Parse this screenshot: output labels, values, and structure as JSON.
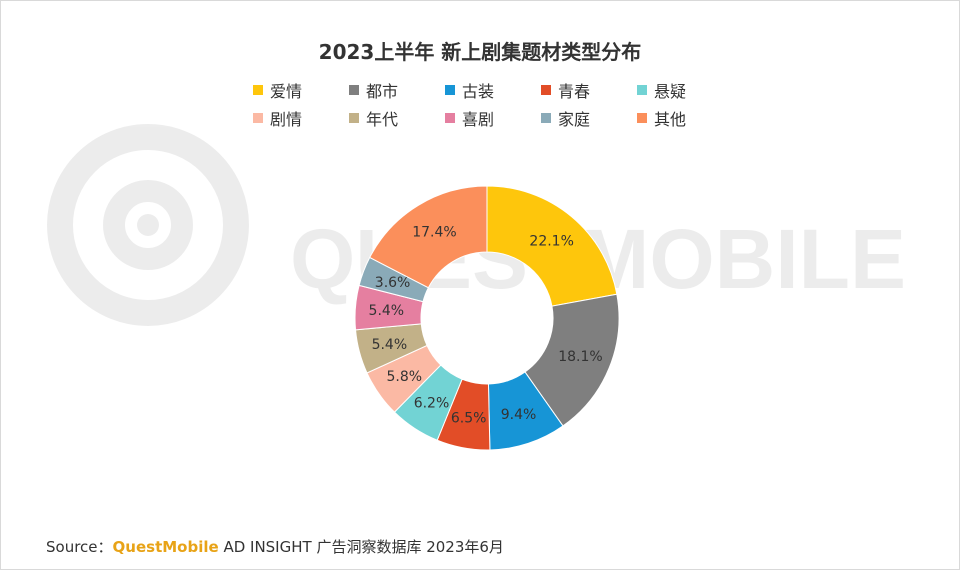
{
  "source": {
    "label": "Source：",
    "brand": "QuestMobile",
    "rest": " AD INSIGHT 广告洞察数据库 2023年6月"
  },
  "watermark": "QUESTMOBILE",
  "colors": {
    "爱情": "#fec60c",
    "都市": "#7f7f7f",
    "古装": "#1795d6",
    "青春": "#e24d27",
    "悬疑": "#72d3d4",
    "剧情": "#fbb9a4",
    "年代": "#c2b188",
    "喜剧": "#e57fa0",
    "家庭": "#8aaab8",
    "其他": "#fb8f5b"
  },
  "chart_data": {
    "type": "pie",
    "donut": true,
    "title": "2023上半年 新上剧集题材类型分布",
    "legend_position": "top",
    "categories": [
      "爱情",
      "都市",
      "古装",
      "青春",
      "悬疑",
      "剧情",
      "年代",
      "喜剧",
      "家庭",
      "其他"
    ],
    "values": [
      22.1,
      18.1,
      9.4,
      6.5,
      6.2,
      5.8,
      5.4,
      5.4,
      3.6,
      17.4
    ],
    "labels": [
      "22.1%",
      "18.1%",
      "9.4%",
      "6.5%",
      "6.2%",
      "5.8%",
      "5.4%",
      "5.4%",
      "3.6%",
      "17.4%"
    ]
  }
}
